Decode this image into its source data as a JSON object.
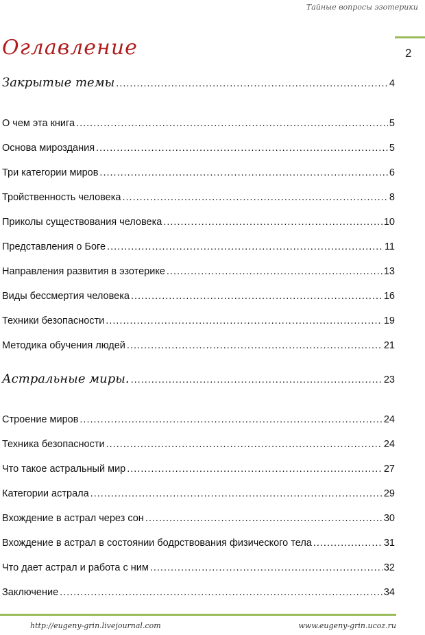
{
  "header": {
    "running_title": "Тайные вопросы эзотерики",
    "page_number": "2"
  },
  "title": "Оглавление",
  "toc": [
    {
      "label": "Закрытые темы",
      "page": "4",
      "section": true
    },
    {
      "label": "О чем эта книга",
      "page": "5"
    },
    {
      "label": "Основа мироздания",
      "page": "5"
    },
    {
      "label": "Три категории миров",
      "page": "6"
    },
    {
      "label": "Тройственность человека",
      "page": "8"
    },
    {
      "label": "Приколы существования человека",
      "page": "10"
    },
    {
      "label": "Представления о Боге",
      "page": "11"
    },
    {
      "label": "Направления развития в эзотерике",
      "page": "13"
    },
    {
      "label": "Виды бессмертия человека",
      "page": "16"
    },
    {
      "label": "Техники безопасности",
      "page": "19"
    },
    {
      "label": "Методика обучения людей",
      "page": "21"
    },
    {
      "label": "Астральные миры.",
      "page": "23",
      "section": true
    },
    {
      "label": "Строение миров",
      "page": "24"
    },
    {
      "label": "Техника безопасности",
      "page": "24"
    },
    {
      "label": "Что такое астральный мир",
      "page": "27"
    },
    {
      "label": "Категории астрала",
      "page": "29"
    },
    {
      "label": "Вхождение в астрал через сон",
      "page": "30"
    },
    {
      "label": "Вхождение в астрал в состоянии бодрствования физического тела",
      "page": "31"
    },
    {
      "label": "Что дает астрал и работа с ним",
      "page": "32"
    },
    {
      "label": "Заключение",
      "page": "34"
    }
  ],
  "footer": {
    "left_link": "http://eugeny-grin.livejournal.com",
    "right_link": "www.eugeny-grin.ucoz.ru"
  },
  "colors": {
    "accent_line": "#9bbb59",
    "title": "#b01c1c"
  }
}
